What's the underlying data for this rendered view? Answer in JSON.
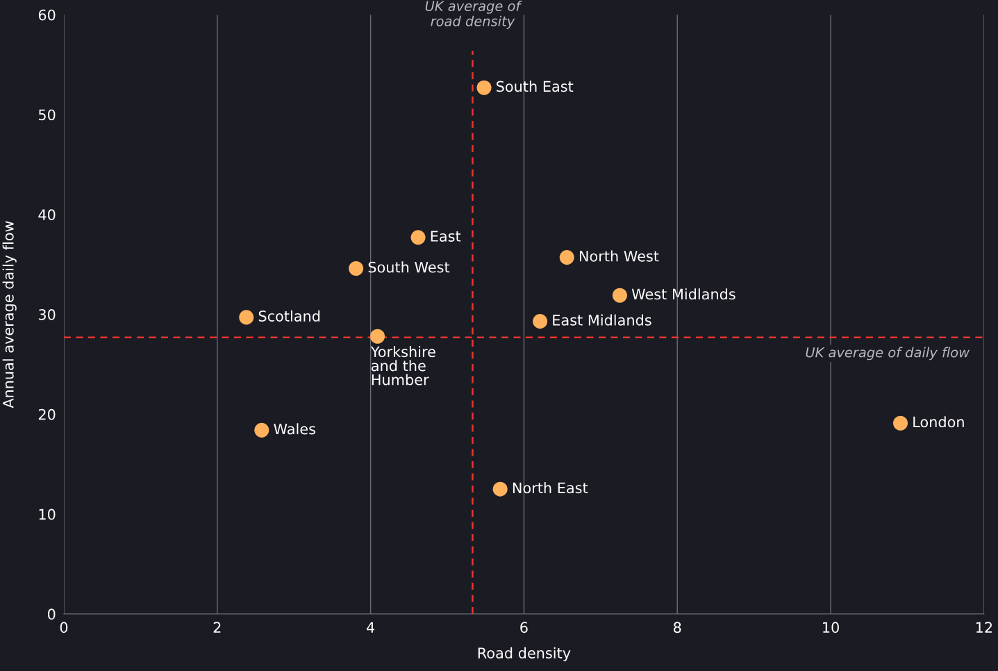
{
  "chart_data": {
    "type": "scatter",
    "xlabel": "Road density",
    "ylabel": "Annual average daily flow",
    "x": [
      5.48,
      4.62,
      3.81,
      2.38,
      4.09,
      2.58,
      6.56,
      7.25,
      6.21,
      5.69,
      10.91
    ],
    "series": [
      {
        "color": "#ffb15c",
        "values": [
          52.7,
          37.7,
          34.6,
          29.7,
          27.8,
          18.4,
          35.7,
          31.9,
          29.3,
          12.5,
          19.1
        ]
      }
    ],
    "marker": "circle",
    "xlim": [
      0,
      12
    ],
    "xticks": [
      0,
      2,
      4,
      6,
      8,
      10,
      12
    ],
    "ylim": [
      0,
      60
    ],
    "yticks": [
      0,
      10,
      20,
      30,
      40,
      50,
      60
    ],
    "grid": "x",
    "ref_lines": [
      {
        "axis": "x",
        "value": 5.33,
        "label": "UK average of\nroad density",
        "color": "#e8352e",
        "line_style": "dashed"
      },
      {
        "axis": "y",
        "value": 27.7,
        "label": "UK average of daily flow",
        "color": "#e8352e",
        "line_style": "dashed"
      }
    ],
    "annotations": [
      {
        "text": "South East",
        "x": 5.48,
        "y": 52.7
      },
      {
        "text": "East",
        "x": 4.62,
        "y": 37.7
      },
      {
        "text": "South West",
        "x": 3.81,
        "y": 34.6
      },
      {
        "text": "Scotland",
        "x": 2.38,
        "y": 29.7
      },
      {
        "text": "Yorkshire\nand the\nHumber",
        "x": 4.09,
        "y": 27.8
      },
      {
        "text": "Wales",
        "x": 2.58,
        "y": 18.4
      },
      {
        "text": "North West",
        "x": 6.56,
        "y": 35.7
      },
      {
        "text": "West Midlands",
        "x": 7.25,
        "y": 31.9
      },
      {
        "text": "East Midlands",
        "x": 6.21,
        "y": 29.3
      },
      {
        "text": "North East",
        "x": 5.69,
        "y": 12.5
      },
      {
        "text": "London",
        "x": 10.91,
        "y": 19.1
      }
    ]
  }
}
